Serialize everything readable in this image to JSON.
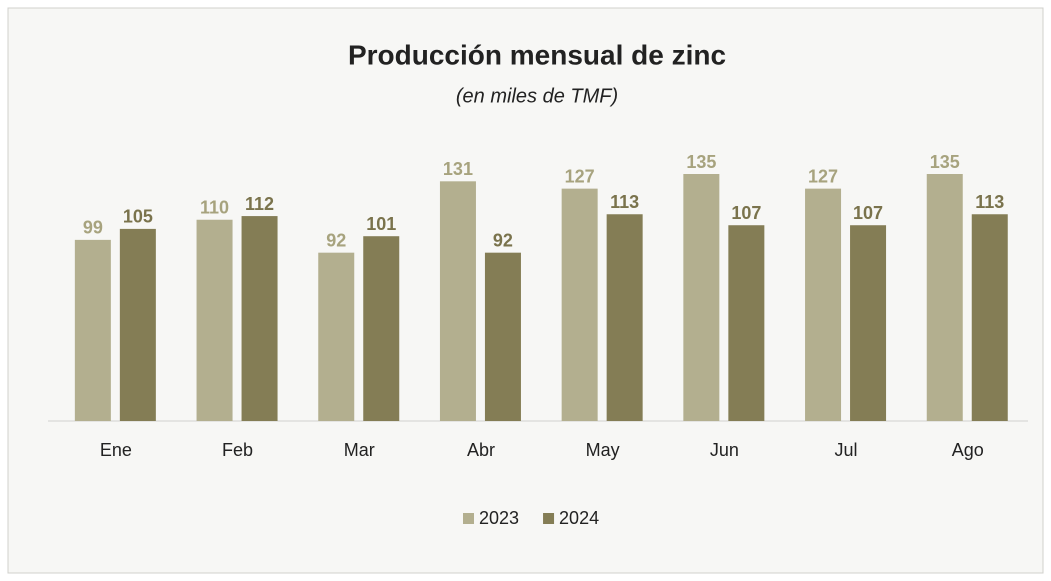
{
  "chart_data": {
    "type": "bar",
    "title": "Producción mensual de zinc",
    "subtitle": "(en miles de TMF)",
    "categories": [
      "Ene",
      "Feb",
      "Mar",
      "Abr",
      "May",
      "Jun",
      "Jul",
      "Ago"
    ],
    "series": [
      {
        "name": "2023",
        "color": "#b3af8f",
        "values": [
          99,
          110,
          92,
          131,
          127,
          135,
          127,
          135
        ]
      },
      {
        "name": "2024",
        "color": "#847d55",
        "values": [
          105,
          112,
          101,
          92,
          113,
          107,
          107,
          113
        ]
      }
    ],
    "legend": "bottom"
  }
}
